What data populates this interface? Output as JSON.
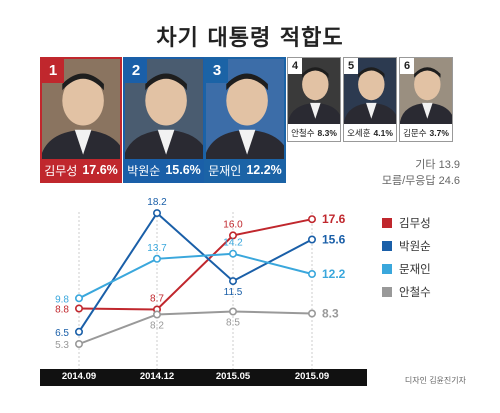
{
  "title": "차기 대통령 적합도",
  "ranking": [
    {
      "rank": "1",
      "name": "김무성",
      "value": "17.6%",
      "color": "#c0272d",
      "photo_bg": "#8a7460"
    },
    {
      "rank": "2",
      "name": "박원순",
      "value": "15.6%",
      "color": "#1a5fa8",
      "photo_bg": "#4a5c70"
    },
    {
      "rank": "3",
      "name": "문재인",
      "value": "12.2%",
      "color": "#1b63a6",
      "photo_bg": "#3c6da8"
    },
    {
      "rank": "4",
      "name": "안철수",
      "value": "8.3%",
      "photo_bg": "#3a3a3a"
    },
    {
      "rank": "5",
      "name": "오세훈",
      "value": "4.1%",
      "photo_bg": "#2c3a50"
    },
    {
      "rank": "6",
      "name": "김문수",
      "value": "3.7%",
      "photo_bg": "#9a8f80"
    }
  ],
  "others": {
    "etc": "기타 13.9",
    "unknown": "모름/무응답 24.6"
  },
  "credit": "디자인 김윤진기자",
  "chart_data": {
    "type": "line",
    "categories": [
      "2014.09",
      "2014.12",
      "2015.05",
      "2015.09"
    ],
    "series": [
      {
        "name": "김무성",
        "color": "#c0272d",
        "values": [
          8.8,
          8.7,
          16.0,
          17.6
        ],
        "labels": [
          "8.8",
          "8.7",
          "16.0",
          "17.6"
        ]
      },
      {
        "name": "박원순",
        "color": "#1a5fa8",
        "values": [
          6.5,
          18.2,
          11.5,
          15.6
        ],
        "labels": [
          "6.5",
          "18.2",
          "11.5",
          "15.6"
        ]
      },
      {
        "name": "문재인",
        "color": "#3aa7dc",
        "values": [
          9.8,
          13.7,
          14.2,
          12.2
        ],
        "labels": [
          "9.8",
          "13.7",
          "14.2",
          "12.2"
        ]
      },
      {
        "name": "안철수",
        "color": "#999999",
        "values": [
          5.3,
          8.2,
          8.5,
          8.3
        ],
        "labels": [
          "5.3",
          "8.2",
          "8.5",
          "8.3"
        ]
      }
    ],
    "grid": "vertical dashed",
    "legend": "right"
  }
}
